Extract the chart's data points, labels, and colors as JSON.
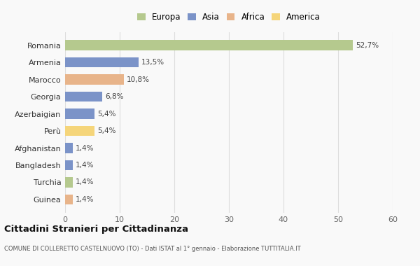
{
  "categories": [
    "Romania",
    "Armenia",
    "Marocco",
    "Georgia",
    "Azerbaigian",
    "Perù",
    "Afghanistan",
    "Bangladesh",
    "Turchia",
    "Guinea"
  ],
  "values": [
    52.7,
    13.5,
    10.8,
    6.8,
    5.4,
    5.4,
    1.4,
    1.4,
    1.4,
    1.4
  ],
  "labels": [
    "52,7%",
    "13,5%",
    "10,8%",
    "6,8%",
    "5,4%",
    "5,4%",
    "1,4%",
    "1,4%",
    "1,4%",
    "1,4%"
  ],
  "colors": [
    "#b5c98e",
    "#7b93c8",
    "#e8b48a",
    "#7b93c8",
    "#7b93c8",
    "#f5d57a",
    "#7b93c8",
    "#7b93c8",
    "#b5c98e",
    "#e8b48a"
  ],
  "legend_labels": [
    "Europa",
    "Asia",
    "Africa",
    "America"
  ],
  "legend_colors": [
    "#b5c98e",
    "#7b93c8",
    "#e8b48a",
    "#f5d57a"
  ],
  "title": "Cittadini Stranieri per Cittadinanza",
  "subtitle": "COMUNE DI COLLERETTO CASTELNUOVO (TO) - Dati ISTAT al 1° gennaio - Elaborazione TUTTITALIA.IT",
  "xlim": [
    0,
    60
  ],
  "xticks": [
    0,
    10,
    20,
    30,
    40,
    50,
    60
  ],
  "background_color": "#f9f9f9",
  "grid_color": "#dddddd"
}
